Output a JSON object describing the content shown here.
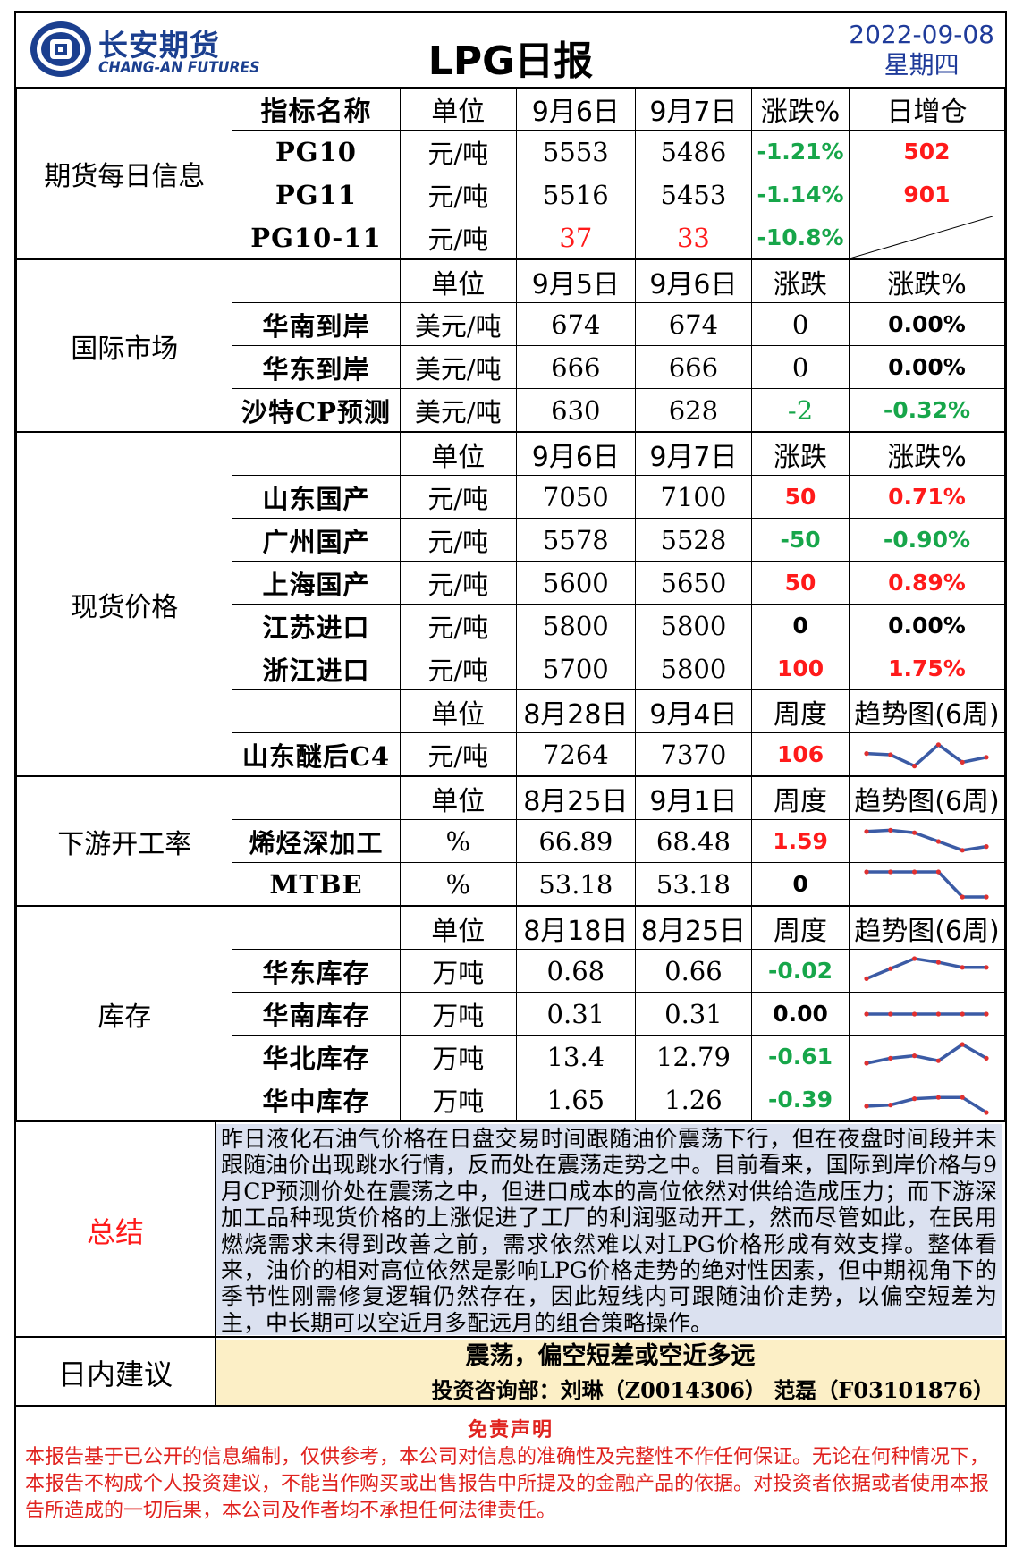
{
  "header": {
    "company_cn": "长安期货",
    "company_en": "CHANG-AN FUTURES",
    "title": "LPG日报",
    "date": "2022-09-08",
    "weekday": "星期四"
  },
  "colors": {
    "red": "#ff1a1a",
    "green": "#17a64a",
    "brand_blue": "#1b3f8f",
    "summary_bg": "#dbe1f0",
    "advice_bg": "#fcefc6"
  },
  "futures": {
    "section": "期货每日信息",
    "headers": [
      "指标名称",
      "单位",
      "9月6日",
      "9月7日",
      "涨跌%",
      "日增仓"
    ],
    "rows": [
      {
        "name": "PG10",
        "unit": "元/吨",
        "v1": "5553",
        "v2": "5486",
        "chg": "-1.21%",
        "oi": "502"
      },
      {
        "name": "PG11",
        "unit": "元/吨",
        "v1": "5516",
        "v2": "5453",
        "chg": "-1.14%",
        "oi": "901"
      },
      {
        "name": "PG10-11",
        "unit": "元/吨",
        "v1": "37",
        "v2": "33",
        "chg": "-10.8%",
        "oi": ""
      }
    ]
  },
  "intl": {
    "section": "国际市场",
    "headers": [
      "",
      "单位",
      "9月5日",
      "9月6日",
      "涨跌",
      "涨跌%"
    ],
    "rows": [
      {
        "name": "华南到岸",
        "unit": "美元/吨",
        "v1": "674",
        "v2": "674",
        "chg": "0",
        "pct": "0.00%"
      },
      {
        "name": "华东到岸",
        "unit": "美元/吨",
        "v1": "666",
        "v2": "666",
        "chg": "0",
        "pct": "0.00%"
      },
      {
        "name": "沙特CP预测",
        "unit": "美元/吨",
        "v1": "630",
        "v2": "628",
        "chg": "-2",
        "pct": "-0.32%"
      }
    ]
  },
  "spot": {
    "section": "现货价格",
    "headers": [
      "",
      "单位",
      "9月6日",
      "9月7日",
      "涨跌",
      "涨跌%"
    ],
    "rows": [
      {
        "name": "山东国产",
        "unit": "元/吨",
        "v1": "7050",
        "v2": "7100",
        "chg": "50",
        "pct": "0.71%"
      },
      {
        "name": "广州国产",
        "unit": "元/吨",
        "v1": "5578",
        "v2": "5528",
        "chg": "-50",
        "pct": "-0.90%"
      },
      {
        "name": "上海国产",
        "unit": "元/吨",
        "v1": "5600",
        "v2": "5650",
        "chg": "50",
        "pct": "0.89%"
      },
      {
        "name": "江苏进口",
        "unit": "元/吨",
        "v1": "5800",
        "v2": "5800",
        "chg": "0",
        "pct": "0.00%"
      },
      {
        "name": "浙江进口",
        "unit": "元/吨",
        "v1": "5700",
        "v2": "5800",
        "chg": "100",
        "pct": "1.75%"
      }
    ],
    "headers2": [
      "",
      "单位",
      "8月28日",
      "9月4日",
      "周度",
      "趋势图(6周)"
    ],
    "c4": {
      "name": "山东醚后C4",
      "unit": "元/吨",
      "v1": "7264",
      "v2": "7370",
      "chg": "106"
    }
  },
  "downstream": {
    "section": "下游开工率",
    "headers": [
      "",
      "单位",
      "8月25日",
      "9月1日",
      "周度",
      "趋势图(6周)"
    ],
    "rows": [
      {
        "name": "烯烃深加工",
        "unit": "%",
        "v1": "66.89",
        "v2": "68.48",
        "chg": "1.59"
      },
      {
        "name": "MTBE",
        "unit": "%",
        "v1": "53.18",
        "v2": "53.18",
        "chg": "0"
      }
    ]
  },
  "inventory": {
    "section": "库存",
    "headers": [
      "",
      "单位",
      "8月18日",
      "8月25日",
      "周度",
      "趋势图(6周)"
    ],
    "rows": [
      {
        "name": "华东库存",
        "unit": "万吨",
        "v1": "0.68",
        "v2": "0.66",
        "chg": "-0.02"
      },
      {
        "name": "华南库存",
        "unit": "万吨",
        "v1": "0.31",
        "v2": "0.31",
        "chg": "0.00"
      },
      {
        "name": "华北库存",
        "unit": "万吨",
        "v1": "13.4",
        "v2": "12.79",
        "chg": "-0.61"
      },
      {
        "name": "华中库存",
        "unit": "万吨",
        "v1": "1.65",
        "v2": "1.26",
        "chg": "-0.39"
      }
    ]
  },
  "sparklines": {
    "c4": [
      0.55,
      0.5,
      0.05,
      0.9,
      0.2,
      0.4
    ],
    "olefin": [
      0.9,
      0.95,
      0.85,
      0.5,
      0.15,
      0.3
    ],
    "mtbe": [
      1,
      1,
      1,
      1,
      0,
      0
    ],
    "east": [
      0.2,
      0.6,
      1,
      0.85,
      0.65,
      0.65
    ],
    "south": [
      0.5,
      0.5,
      0.5,
      0.5,
      0.5,
      0.5
    ],
    "north": [
      0.25,
      0.45,
      0.55,
      0.35,
      1,
      0.45
    ],
    "central": [
      0.25,
      0.3,
      0.55,
      0.6,
      0.6,
      0
    ]
  },
  "summary": {
    "label": "总结",
    "text": "昨日液化石油气价格在日盘交易时间跟随油价震荡下行，但在夜盘时间段并未跟随油价出现跳水行情，反而处在震荡走势之中。目前看来，国际到岸价格与9月CP预测价处在震荡之中，但进口成本的高位依然对供给造成压力；而下游深加工品种现货价格的上涨促进了工厂的利润驱动开工，然而尽管如此，在民用燃烧需求未得到改善之前，需求依然难以对LPG价格形成有效支撑。整体看来，油价的相对高位依然是影响LPG价格走势的绝对性因素，但中期视角下的季节性刚需修复逻辑仍然存在，因此短线内可跟随油价走势，以偏空短差为主，中长期可以空近月多配远月的组合策略操作。"
  },
  "advice": {
    "label": "日内建议",
    "main": "震荡，偏空短差或空近多远",
    "contact": "投资咨询部：刘琳（Z0014306） 范磊（F03101876）"
  },
  "disclaimer": {
    "title": "免责声明",
    "text": "本报告基于已公开的信息编制，仅供参考，本公司对信息的准确性及完整性不作任何保证。无论在何种情况下，本报告不构成个人投资建议，不能当作购买或出售报告中所提及的金融产品的依据。对投资者依据或者使用本报告所造成的一切后果，本公司及作者均不承担任何法律责任。"
  }
}
